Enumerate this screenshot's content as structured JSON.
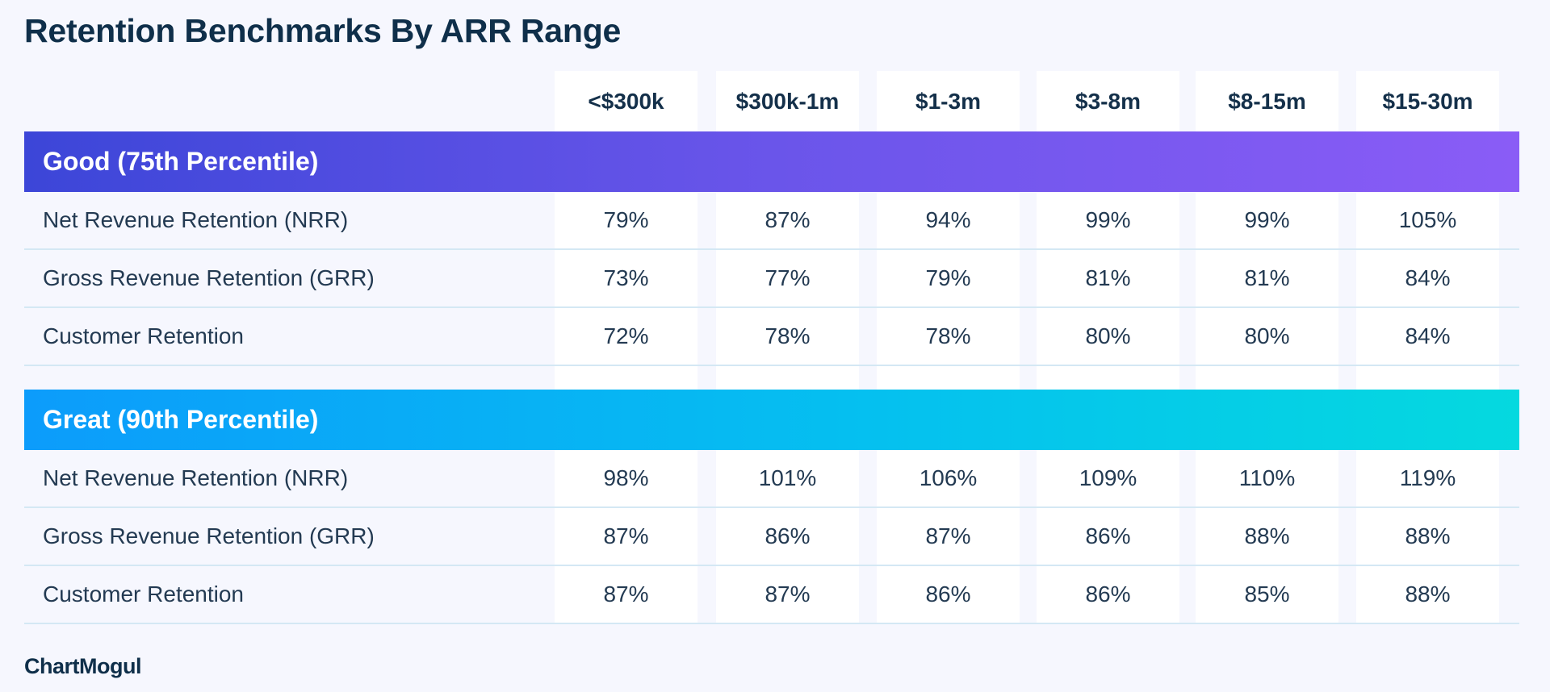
{
  "title": "Retention Benchmarks By ARR Range",
  "logo": "ChartMogul",
  "chart_data": {
    "type": "table",
    "title": "Retention Benchmarks By ARR Range",
    "columns": [
      "<$300k",
      "$300k-1m",
      "$1-3m",
      "$3-8m",
      "$8-15m",
      "$15-30m"
    ],
    "groups": [
      {
        "label": "Good (75th Percentile)",
        "rows": [
          {
            "label": "Net Revenue Retention (NRR)",
            "values": [
              "79%",
              "87%",
              "94%",
              "99%",
              "99%",
              "105%"
            ]
          },
          {
            "label": "Gross Revenue Retention (GRR)",
            "values": [
              "73%",
              "77%",
              "79%",
              "81%",
              "81%",
              "84%"
            ]
          },
          {
            "label": "Customer Retention",
            "values": [
              "72%",
              "78%",
              "78%",
              "80%",
              "80%",
              "84%"
            ]
          }
        ]
      },
      {
        "label": "Great (90th Percentile)",
        "rows": [
          {
            "label": "Net Revenue Retention (NRR)",
            "values": [
              "98%",
              "101%",
              "106%",
              "109%",
              "110%",
              "119%"
            ]
          },
          {
            "label": "Gross Revenue Retention (GRR)",
            "values": [
              "87%",
              "86%",
              "87%",
              "86%",
              "88%",
              "88%"
            ]
          },
          {
            "label": "Customer Retention",
            "values": [
              "87%",
              "87%",
              "86%",
              "86%",
              "85%",
              "88%"
            ]
          }
        ]
      }
    ]
  }
}
